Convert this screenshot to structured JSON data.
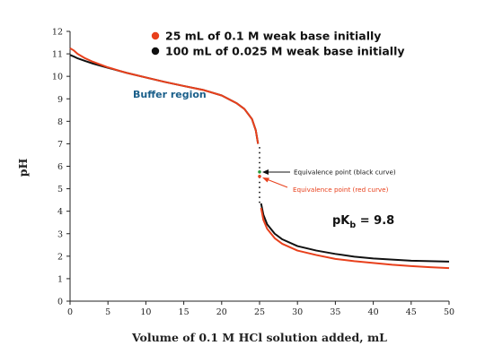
{
  "chart_data": {
    "type": "line",
    "title": "",
    "xlabel": "Volume of 0.1 M HCl solution added, mL",
    "ylabel": "pH",
    "xlim": [
      0,
      50
    ],
    "ylim": [
      0,
      12
    ],
    "x_ticks": [
      0,
      5,
      10,
      15,
      20,
      25,
      30,
      35,
      40,
      45,
      50
    ],
    "y_ticks": [
      0,
      1,
      2,
      3,
      4,
      5,
      6,
      7,
      8,
      9,
      10,
      11,
      12
    ],
    "grid": false,
    "legend_position": "top",
    "series": [
      {
        "name": "25 mL of 0.1 M weak base initially",
        "color": "#e8401c",
        "x": [
          0,
          0.5,
          1,
          2,
          3,
          5,
          7.5,
          10,
          12.5,
          15,
          17.5,
          20,
          22,
          23,
          24,
          24.5,
          24.8,
          25.2,
          25.5,
          26,
          27,
          28,
          30,
          32.5,
          35,
          37.5,
          40,
          42.5,
          45,
          47.5,
          50
        ],
        "y": [
          11.25,
          11.15,
          11.0,
          10.8,
          10.65,
          10.4,
          10.15,
          9.95,
          9.75,
          9.57,
          9.4,
          9.15,
          8.8,
          8.55,
          8.1,
          7.6,
          7.0,
          4.15,
          3.62,
          3.22,
          2.8,
          2.55,
          2.25,
          2.05,
          1.88,
          1.78,
          1.7,
          1.62,
          1.56,
          1.51,
          1.47
        ]
      },
      {
        "name": "100 mL of 0.025 M weak base initially",
        "color": "#111111",
        "x": [
          0,
          0.5,
          1,
          2,
          3,
          5,
          7.5,
          10,
          12.5,
          15,
          17.5,
          20,
          22,
          23,
          24,
          24.5,
          24.8,
          25.2,
          25.5,
          26,
          27,
          28,
          30,
          32.5,
          35,
          37.5,
          40,
          42.5,
          45,
          47.5,
          50
        ],
        "y": [
          10.95,
          10.88,
          10.8,
          10.68,
          10.57,
          10.38,
          10.15,
          9.95,
          9.75,
          9.57,
          9.4,
          9.15,
          8.8,
          8.55,
          8.1,
          7.6,
          7.0,
          4.35,
          3.85,
          3.42,
          3.0,
          2.75,
          2.45,
          2.25,
          2.1,
          1.98,
          1.9,
          1.85,
          1.8,
          1.78,
          1.76
        ]
      }
    ],
    "equivalence_points": [
      {
        "series": "black",
        "x": 25,
        "y": 5.75
      },
      {
        "series": "red",
        "x": 25,
        "y": 5.55
      }
    ],
    "annotations": {
      "buffer_region": "Buffer region",
      "eq_black": "Equivalence point (black curve)",
      "eq_red": "Equivalence point (red curve)",
      "pkb_main": "pK",
      "pkb_sub": "b",
      "pkb_value": " = 9.8"
    },
    "colors": {
      "buffer_text": "#1a5f8a",
      "eq_red_text": "#e8401c",
      "axis": "#222222"
    }
  }
}
